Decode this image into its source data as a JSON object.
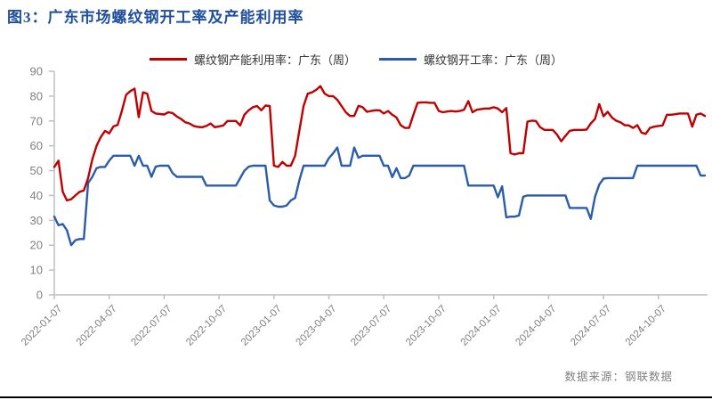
{
  "figure": {
    "title": "图3：广东市场螺纹钢开工率及产能利用率",
    "source": "数据来源：钢联数据"
  },
  "legend": {
    "items": [
      {
        "label": "螺纹钢产能利用率：广东（周）",
        "color": "#c00000"
      },
      {
        "label": "螺纹钢开工率：广东（周）",
        "color": "#2a5caa"
      }
    ]
  },
  "colors": {
    "title_text": "#1f4e9c",
    "axis_line": "#bfbfbf",
    "tick_text": "#808080",
    "source_text": "#808080",
    "divider": "#000000",
    "series_red": "#c00000",
    "series_blue": "#2a5caa"
  },
  "chart_data": {
    "type": "line",
    "title": "广东市场螺纹钢开工率及产能利用率",
    "xlabel": "",
    "ylabel": "",
    "ylim": [
      0,
      90
    ],
    "y_ticks": [
      0,
      10,
      20,
      30,
      40,
      50,
      60,
      70,
      80,
      90
    ],
    "grid": false,
    "legend_position": "top",
    "x_unit": "week",
    "n_points": 155,
    "x_tick_labels": [
      "2022-01-07",
      "2022-04-07",
      "2022-07-07",
      "2022-10-07",
      "2023-01-07",
      "2023-04-07",
      "2023-07-07",
      "2023-10-07",
      "2024-01-07",
      "2024-04-07",
      "2024-07-07",
      "2024-10-07"
    ],
    "x_tick_indices": [
      0,
      13,
      26,
      39,
      52,
      65,
      78,
      91,
      104,
      117,
      130,
      143
    ],
    "series": [
      {
        "name": "螺纹钢产能利用率：广东（周）",
        "color": "#c00000",
        "values": [
          51.5,
          54,
          41.5,
          38,
          38.5,
          40,
          41.5,
          42,
          47,
          54.5,
          60,
          63.5,
          66,
          65,
          67.8,
          68.4,
          74,
          80.5,
          82,
          83,
          71.5,
          81.5,
          81,
          74,
          73,
          72.8,
          72.6,
          73.5,
          73.2,
          71.8,
          70.8,
          69.5,
          69,
          68,
          67.6,
          67.5,
          68,
          69,
          67.5,
          67.8,
          68.2,
          70,
          70,
          70,
          68.2,
          72.5,
          74.3,
          75.5,
          76,
          74.3,
          76.2,
          76,
          52,
          51.5,
          53.5,
          52,
          52,
          56,
          66,
          76,
          81,
          81.5,
          82.5,
          84,
          81,
          80,
          80,
          78.5,
          76,
          73.5,
          72,
          72,
          76.1,
          75.5,
          73.7,
          74,
          74.3,
          74.3,
          73,
          74,
          72.5,
          71.4,
          68.3,
          67.2,
          67.2,
          72.5,
          77.3,
          77.5,
          77.5,
          77.3,
          77.3,
          74,
          73.5,
          73.8,
          74,
          73.8,
          74,
          74.5,
          78,
          73.5,
          74.5,
          74.8,
          75,
          75,
          75.5,
          75,
          73.5,
          75.2,
          57,
          56.5,
          57,
          57,
          69.7,
          70.1,
          70,
          67.5,
          66.4,
          66.4,
          66.4,
          64.5,
          61.8,
          64,
          66,
          66.4,
          66.4,
          66.4,
          66.5,
          69,
          70.8,
          76.8,
          71.9,
          73.7,
          71.4,
          70.1,
          69.5,
          68.3,
          68.2,
          67.2,
          68.3,
          65.3,
          64.8,
          67.2,
          67.7,
          68,
          68.2,
          72.5,
          72.5,
          72.7,
          73,
          73,
          73,
          67.7,
          72.5,
          73,
          72
        ]
      },
      {
        "name": "螺纹钢开工率：广东（周）",
        "color": "#2a5caa",
        "values": [
          31.5,
          28,
          28.5,
          26,
          20,
          22,
          22.5,
          22.5,
          45,
          47.5,
          51,
          51.5,
          51.5,
          54,
          56,
          56,
          56,
          56,
          56,
          52,
          56,
          52,
          52,
          47.5,
          51.6,
          52,
          52,
          52,
          49,
          47.5,
          47.5,
          47.5,
          47.5,
          47.5,
          47.5,
          47.5,
          44,
          44,
          44,
          44,
          44,
          44,
          44,
          44,
          47,
          50,
          51.6,
          52,
          52,
          52,
          52,
          38,
          36,
          35.5,
          35.5,
          36,
          38,
          39,
          46,
          52,
          52,
          52,
          52,
          52,
          52,
          55,
          57,
          59.3,
          52,
          52,
          52,
          59.3,
          55.2,
          56,
          56,
          56,
          56,
          56,
          52,
          52,
          47.4,
          51,
          47,
          47,
          48,
          52,
          52,
          52,
          52,
          52,
          52,
          52,
          52,
          52,
          52,
          52,
          52,
          52,
          44,
          44,
          44,
          44,
          44,
          44,
          44,
          39.3,
          43.7,
          31.2,
          31.5,
          31.5,
          32,
          39.5,
          40,
          40,
          40,
          40,
          40,
          40,
          40,
          40,
          40,
          40,
          35,
          35,
          35,
          35,
          35,
          30.6,
          39.5,
          44.4,
          46.8,
          47,
          47,
          47,
          47,
          47,
          47,
          47,
          52,
          52,
          52,
          52,
          52,
          52,
          52,
          52,
          52,
          52,
          52,
          52,
          52,
          52,
          52,
          48,
          48
        ]
      }
    ]
  }
}
